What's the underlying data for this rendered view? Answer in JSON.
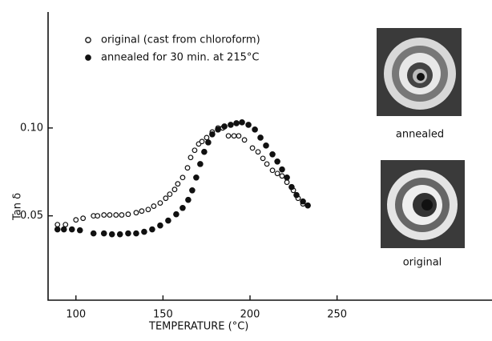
{
  "chart_data": {
    "type": "scatter",
    "x_label": "TEMPERATURE (°C)",
    "y_label": "Tan δ",
    "xlim": [
      84,
      339
    ],
    "ylim": [
      0.002,
      0.166
    ],
    "xticks": [
      100,
      150,
      200,
      250
    ],
    "yticks": [
      {
        "value": 0.1,
        "label": "0.10"
      },
      {
        "value": 0.05,
        "label": "0.05"
      }
    ],
    "legend": "upper left",
    "series": [
      {
        "name": "original (cast from chloroform)",
        "color": "#111111",
        "marker": "open",
        "x": [
          89.4,
          94.0,
          100.0,
          104.1,
          110.1,
          112.4,
          116.1,
          119.4,
          123.0,
          126.3,
          130.0,
          134.6,
          137.8,
          141.5,
          144.7,
          148.4,
          151.6,
          153.9,
          156.7,
          158.5,
          161.3,
          164.1,
          165.9,
          168.2,
          170.5,
          172.4,
          175.1,
          178.3,
          181.6,
          184.3,
          187.6,
          190.8,
          193.5,
          196.8,
          201.4,
          204.6,
          207.4,
          209.7,
          212.9,
          215.7,
          218.4,
          221.2,
          224.9,
          227.6,
          230.4
        ],
        "values": [
          0.045,
          0.045,
          0.0477,
          0.0486,
          0.05,
          0.05,
          0.0505,
          0.0505,
          0.0505,
          0.0505,
          0.0509,
          0.0518,
          0.0527,
          0.0536,
          0.0555,
          0.0573,
          0.06,
          0.0623,
          0.065,
          0.0682,
          0.0718,
          0.0773,
          0.0832,
          0.0873,
          0.0909,
          0.0923,
          0.0945,
          0.0977,
          0.1,
          0.1,
          0.0955,
          0.0955,
          0.0955,
          0.0932,
          0.0886,
          0.0864,
          0.0827,
          0.0795,
          0.0759,
          0.0741,
          0.0727,
          0.0691,
          0.0645,
          0.06,
          0.0568
        ]
      },
      {
        "name": "annealed for 30 min. at 215°C",
        "color": "#111111",
        "marker": "filled",
        "x": [
          89.4,
          93.1,
          97.7,
          102.3,
          110.1,
          116.1,
          120.7,
          125.3,
          130.0,
          134.6,
          139.2,
          143.8,
          148.4,
          153.0,
          157.6,
          161.3,
          164.5,
          166.8,
          169.1,
          171.4,
          173.7,
          176.0,
          178.3,
          181.6,
          185.3,
          188.9,
          192.2,
          195.4,
          199.1,
          202.8,
          206.0,
          209.2,
          212.9,
          215.7,
          218.4,
          221.2,
          223.9,
          226.7,
          230.4,
          233.2
        ],
        "values": [
          0.0423,
          0.0423,
          0.0423,
          0.0418,
          0.04,
          0.04,
          0.0395,
          0.0395,
          0.04,
          0.04,
          0.0409,
          0.0423,
          0.0445,
          0.0473,
          0.0509,
          0.0545,
          0.0591,
          0.0645,
          0.0718,
          0.0795,
          0.0864,
          0.0918,
          0.0964,
          0.0991,
          0.1009,
          0.1018,
          0.1027,
          0.1032,
          0.1018,
          0.0991,
          0.0945,
          0.09,
          0.085,
          0.0809,
          0.0764,
          0.0718,
          0.0664,
          0.0618,
          0.0582,
          0.0559
        ]
      }
    ],
    "insets": [
      {
        "label": "annealed"
      },
      {
        "label": "original"
      }
    ]
  }
}
